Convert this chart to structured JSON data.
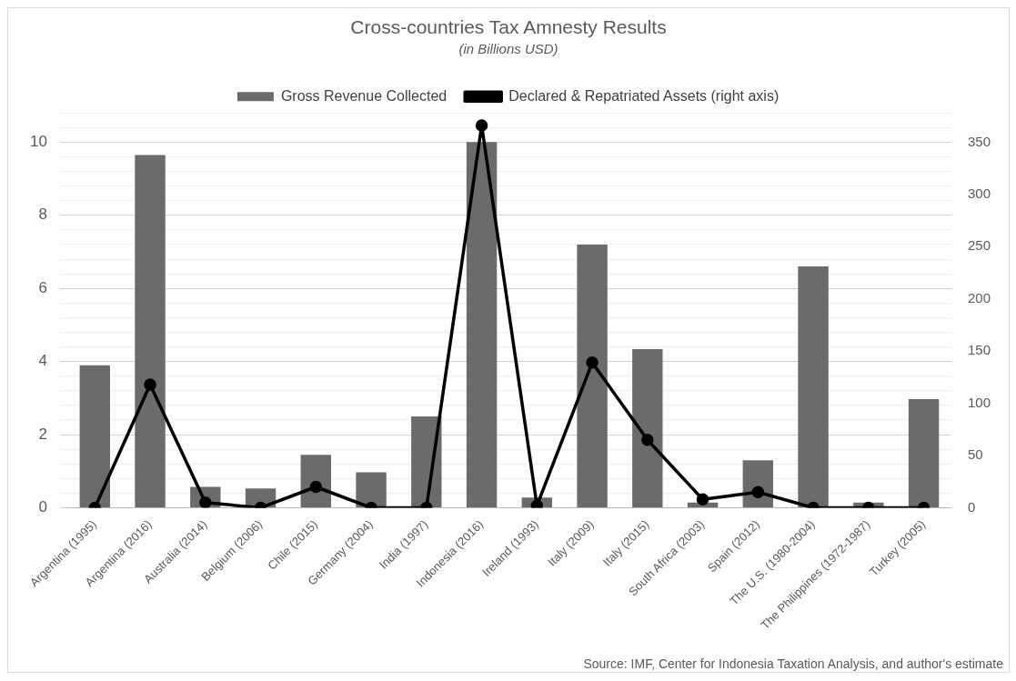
{
  "chart_data": {
    "type": "bar",
    "title": "Cross-countries Tax Amnesty Results",
    "subtitle": "(in Billions USD)",
    "categories": [
      "Argentina (1995)",
      "Argentina (2016)",
      "Australia (2014)",
      "Belgium (2006)",
      "Chile (2015)",
      "Germany (2004)",
      "India (1997)",
      "Indonesia (2016)",
      "Ireland (1993)",
      "Italy (2009)",
      "Italy (2015)",
      "South Africa (2003)",
      "Spain (2012)",
      "The U.S. (1980-2004)",
      "The Philippines (1972-1987)",
      "Turkey (2005)"
    ],
    "series": [
      {
        "name": "Gross Revenue Collected",
        "color": "#6b6b6b",
        "values": [
          3.9,
          9.65,
          0.57,
          0.53,
          1.45,
          0.97,
          2.5,
          10.0,
          0.28,
          7.2,
          4.34,
          0.14,
          1.3,
          6.6,
          0.14,
          2.97
        ]
      },
      {
        "name": "Declared & Repatriated Assets (right axis)",
        "type": "line",
        "axis": "y2",
        "color": "#000000",
        "values": [
          0,
          118,
          5,
          0,
          20,
          0,
          0,
          366,
          2,
          139,
          65,
          8,
          15,
          0,
          0,
          0
        ]
      }
    ],
    "ylim": [
      0,
      10.8
    ],
    "yticks": [
      0,
      {
        "value": 0.4,
        "label": null
      },
      {
        "value": 0.8,
        "label": null
      },
      {
        "value": 1.2,
        "label": null
      },
      {
        "value": 1.6,
        "label": null
      },
      2,
      {
        "value": 2.4,
        "label": null
      },
      {
        "value": 2.8,
        "label": null
      },
      {
        "value": 3.2,
        "label": null
      },
      {
        "value": 3.6,
        "label": null
      },
      4,
      {
        "value": 4.4,
        "label": null
      },
      {
        "value": 4.8,
        "label": null
      },
      {
        "value": 5.2,
        "label": null
      },
      {
        "value": 5.6,
        "label": null
      },
      6,
      {
        "value": 6.4,
        "label": null
      },
      {
        "value": 6.8,
        "label": null
      },
      {
        "value": 7.2,
        "label": null
      },
      {
        "value": 7.6,
        "label": null
      },
      8,
      {
        "value": 8.4,
        "label": null
      },
      {
        "value": 8.8,
        "label": null
      },
      {
        "value": 9.2,
        "label": null
      },
      {
        "value": 9.6,
        "label": null
      },
      10,
      {
        "value": 10.4,
        "label": null
      },
      {
        "value": 10.8,
        "label": null
      }
    ],
    "y2lim": [
      0,
      378
    ],
    "y2ticks": [
      0,
      50,
      100,
      150,
      200,
      250,
      300,
      350
    ],
    "grid": "y",
    "legend": "top",
    "marker": "circle",
    "line_style": "solid",
    "annotations": [
      "Source: IMF, Center for Indonesia Taxation Analysis, and author's estimate"
    ]
  }
}
